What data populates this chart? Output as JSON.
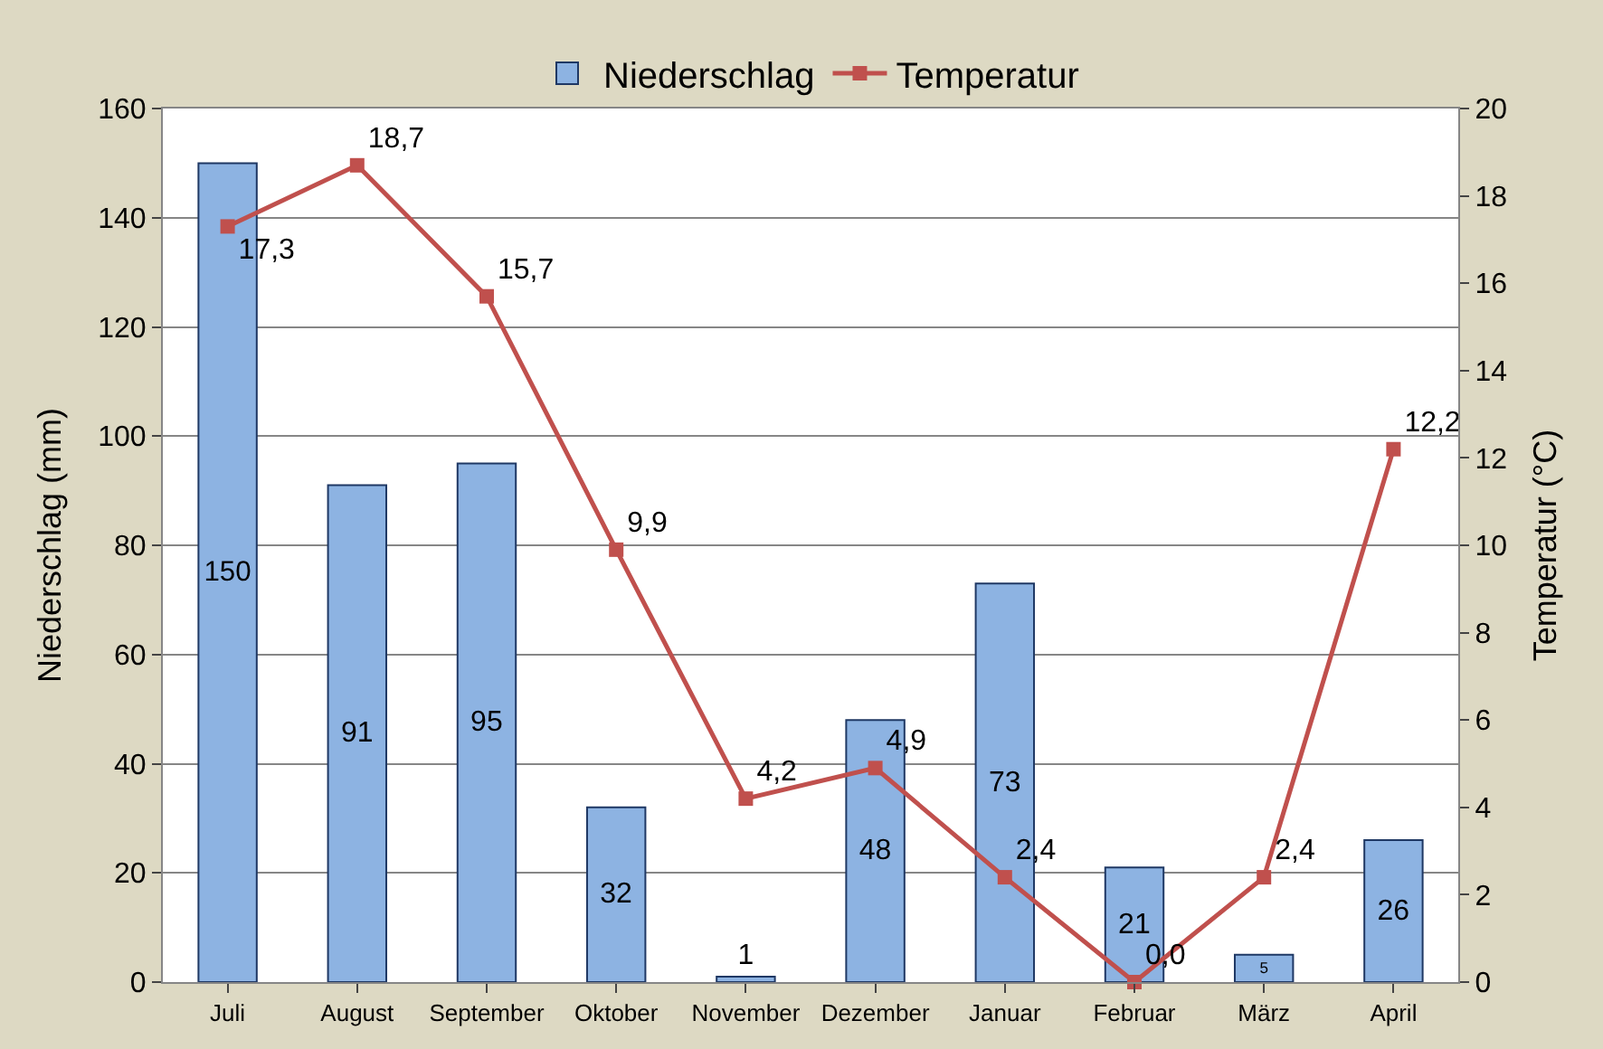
{
  "chart_data": {
    "type": "bar",
    "categories": [
      "Juli",
      "August",
      "September",
      "Oktober",
      "November",
      "Dezember",
      "Januar",
      "Februar",
      "März",
      "April"
    ],
    "series": [
      {
        "name": "Niederschlag",
        "color": "#8db3e2",
        "values": [
          150,
          91,
          95,
          32,
          1,
          48,
          73,
          21,
          5,
          26
        ],
        "value_labels": [
          "150",
          "91",
          "95",
          "32",
          "1",
          "48",
          "73",
          "21",
          "5",
          "26"
        ]
      },
      {
        "name": "Temperatur",
        "type": "line",
        "axis": "y2",
        "color": "#c0504d",
        "values": [
          17.3,
          18.7,
          15.7,
          9.9,
          4.2,
          4.9,
          2.4,
          0.0,
          2.4,
          12.2
        ],
        "value_labels": [
          "17,3",
          "18,7",
          "15,7",
          "9,9",
          "4,2",
          "4,9",
          "2,4",
          "0,0",
          "2,4",
          "12,2"
        ]
      }
    ],
    "ylabel": "Niederschlag (mm)",
    "y2label": "Temperatur (°C)",
    "ylim": [
      0,
      160
    ],
    "yticks": [
      0,
      20,
      40,
      60,
      80,
      100,
      120,
      140,
      160
    ],
    "y2lim": [
      0,
      20
    ],
    "y2ticks": [
      0,
      2,
      4,
      6,
      8,
      10,
      12,
      14,
      16,
      18,
      20
    ],
    "grid": "y",
    "legend": "top",
    "marker": "square",
    "line_style": "solid"
  }
}
